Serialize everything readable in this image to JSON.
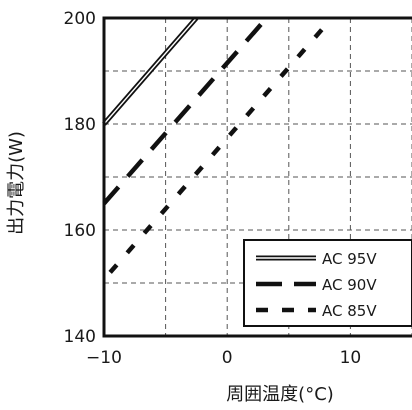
{
  "chart_data": {
    "type": "line",
    "title": "",
    "xlabel": "周囲温度(°C)",
    "ylabel": "出力電力(W)",
    "xlim": [
      -10,
      15
    ],
    "ylim": [
      140,
      200
    ],
    "x_ticks": [
      -10,
      -5,
      0,
      5,
      10,
      15
    ],
    "x_tick_labels": [
      "−10",
      "",
      "0",
      "",
      "10",
      ""
    ],
    "y_ticks": [
      140,
      160,
      180,
      200
    ],
    "y_tick_labels": [
      "140",
      "160",
      "180",
      "200"
    ],
    "grid": true,
    "legend_position": "bottom-right",
    "series": [
      {
        "name": "AC 95V",
        "style": "double-solid",
        "x": [
          -10,
          -2.5
        ],
        "y": [
          180,
          200
        ]
      },
      {
        "name": "AC 90V",
        "style": "long-dash",
        "x": [
          -10,
          3.2
        ],
        "y": [
          165,
          200
        ]
      },
      {
        "name": "AC 85V",
        "style": "short-dash",
        "x": [
          -9.5,
          8.5
        ],
        "y": [
          152,
          200
        ]
      }
    ]
  }
}
